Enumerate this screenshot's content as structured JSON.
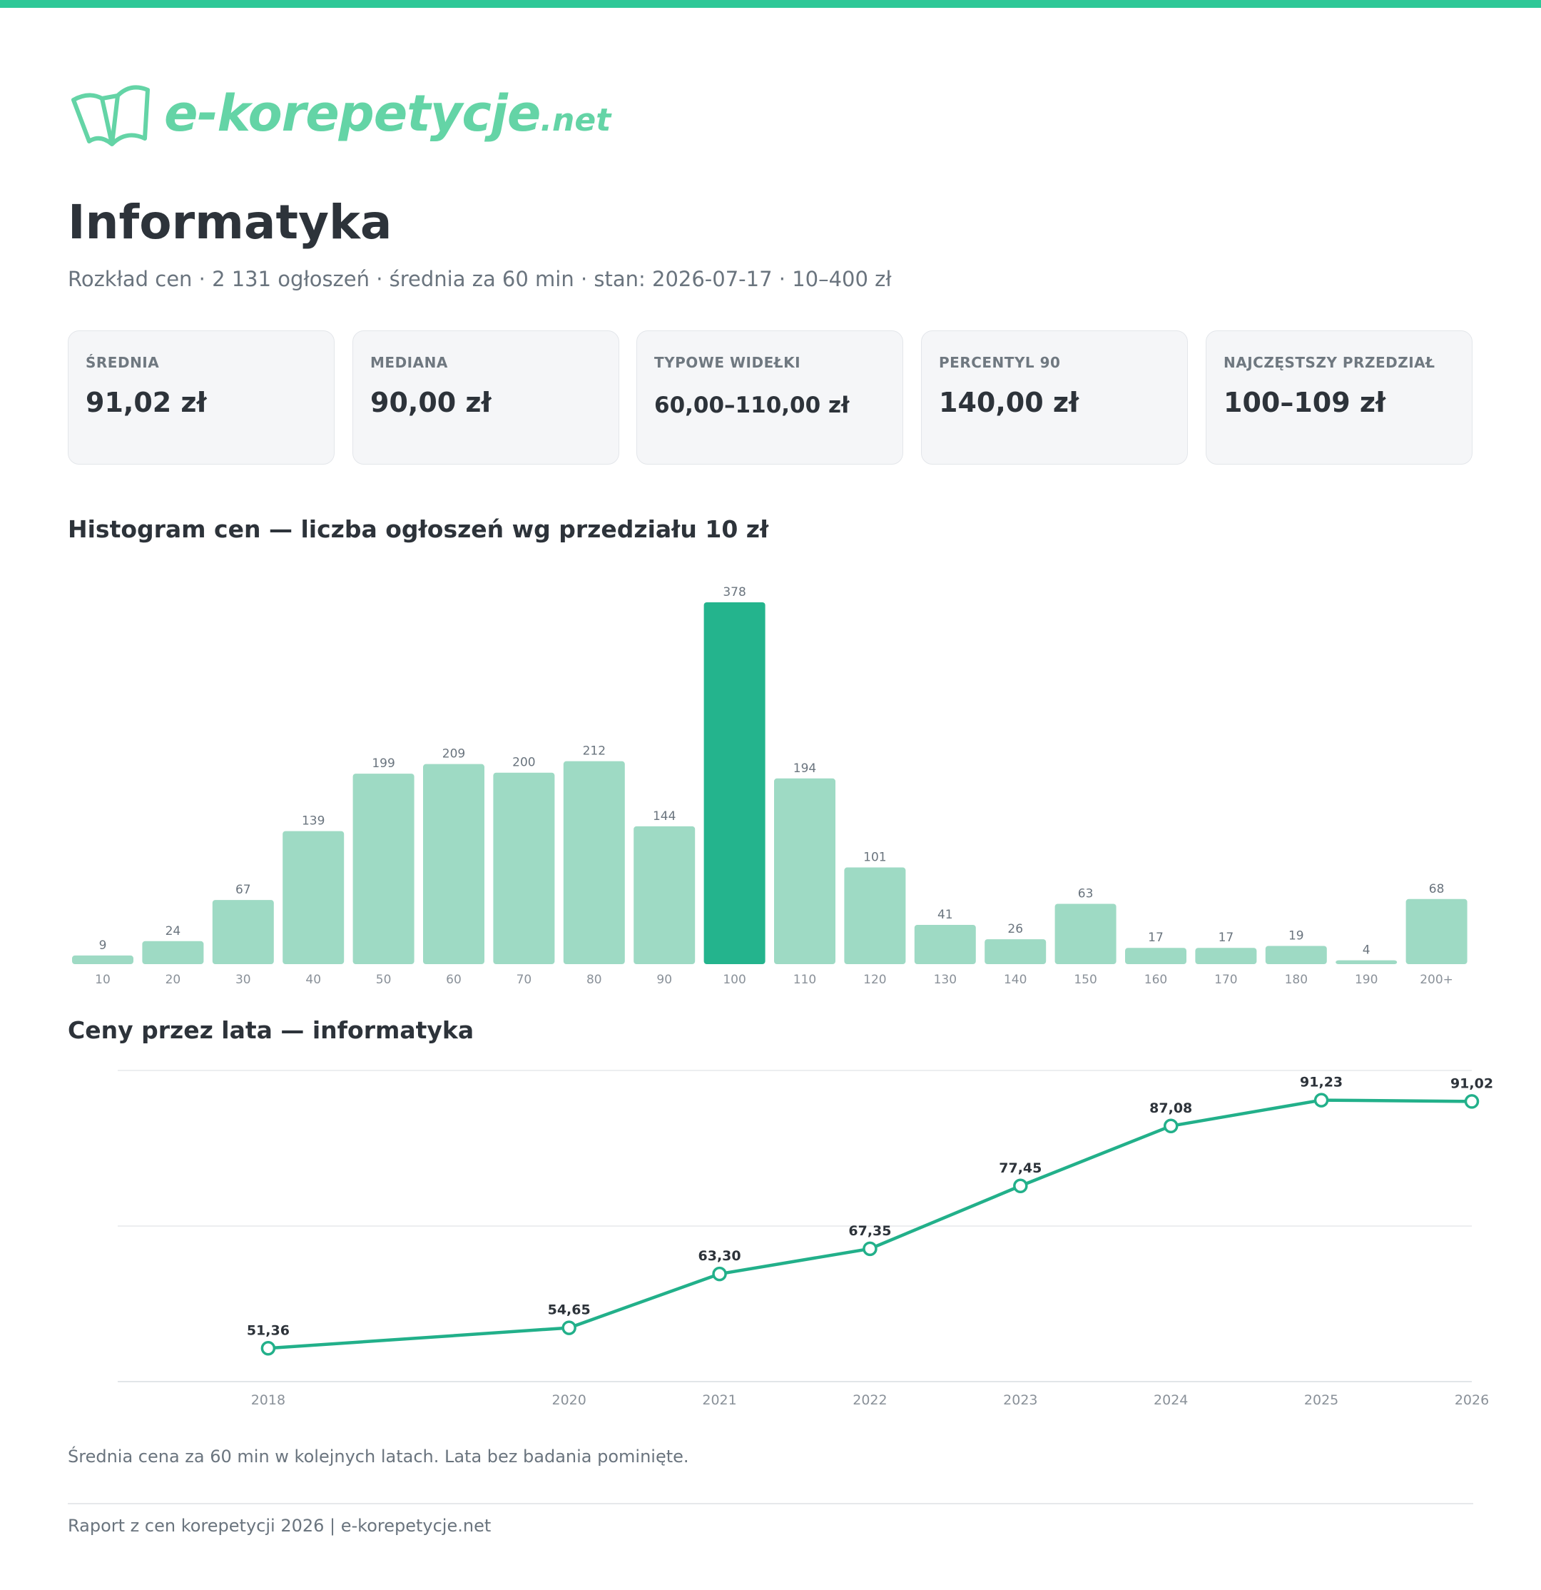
{
  "brand": {
    "name": "e-korepetycje",
    "tld": ".net",
    "accent": "#2ec897",
    "logo_color": "#64d4a6"
  },
  "page": {
    "title": "Informatyka",
    "subtitle": "Rozkład cen · 2 131 ogłoszeń · średnia za 60 min · stan: 2026-07-17 · 10–400 zł"
  },
  "stats": [
    {
      "label": "ŚREDNIA",
      "value": "91,02 zł"
    },
    {
      "label": "MEDIANA",
      "value": "90,00 zł"
    },
    {
      "label": "TYPOWE WIDEŁKI",
      "value": "60,00–110,00 zł"
    },
    {
      "label": "PERCENTYL 90",
      "value": "140,00 zł"
    },
    {
      "label": "NAJCZĘSTSZY PRZEDZIAŁ",
      "value": "100–109 zł"
    }
  ],
  "histogram_title": "Histogram cen — liczba ogłoszeń wg przedziału 10 zł",
  "trend_title": "Ceny przez lata — informatyka",
  "caption": "Średnia cena za 60 min w kolejnych latach. Lata bez badania pominięte.",
  "footer": "Raport z cen korepetycji 2026 | e-korepetycje.net",
  "chart_data": [
    {
      "type": "bar",
      "title": "Histogram cen — liczba ogłoszeń wg przedziału 10 zł",
      "categories": [
        "10",
        "20",
        "30",
        "40",
        "50",
        "60",
        "70",
        "80",
        "90",
        "100",
        "110",
        "120",
        "130",
        "140",
        "150",
        "160",
        "170",
        "180",
        "190",
        "200+"
      ],
      "values": [
        9,
        24,
        67,
        139,
        199,
        209,
        200,
        212,
        144,
        378,
        194,
        101,
        41,
        26,
        63,
        17,
        17,
        19,
        4,
        68
      ],
      "highlight": "100",
      "ylim": [
        0,
        378
      ],
      "grid": false,
      "colors": {
        "bar": "#9edac4",
        "highlight": "#24b48d",
        "label": "#6a747e"
      }
    },
    {
      "type": "line",
      "title": "Ceny przez lata — informatyka",
      "x": [
        "2018",
        "2020",
        "2021",
        "2022",
        "2023",
        "2024",
        "2025",
        "2026"
      ],
      "values": [
        51.36,
        54.65,
        63.3,
        67.35,
        77.45,
        87.08,
        91.23,
        91.02
      ],
      "labels": [
        "51,36",
        "54,65",
        "63,30",
        "67,35",
        "77,45",
        "87,08",
        "91,23",
        "91,02"
      ],
      "ylim": [
        46,
        96
      ],
      "grid": true,
      "colors": {
        "line": "#22b08a",
        "label": "#2d333a",
        "axis": "#8a9199"
      }
    }
  ]
}
